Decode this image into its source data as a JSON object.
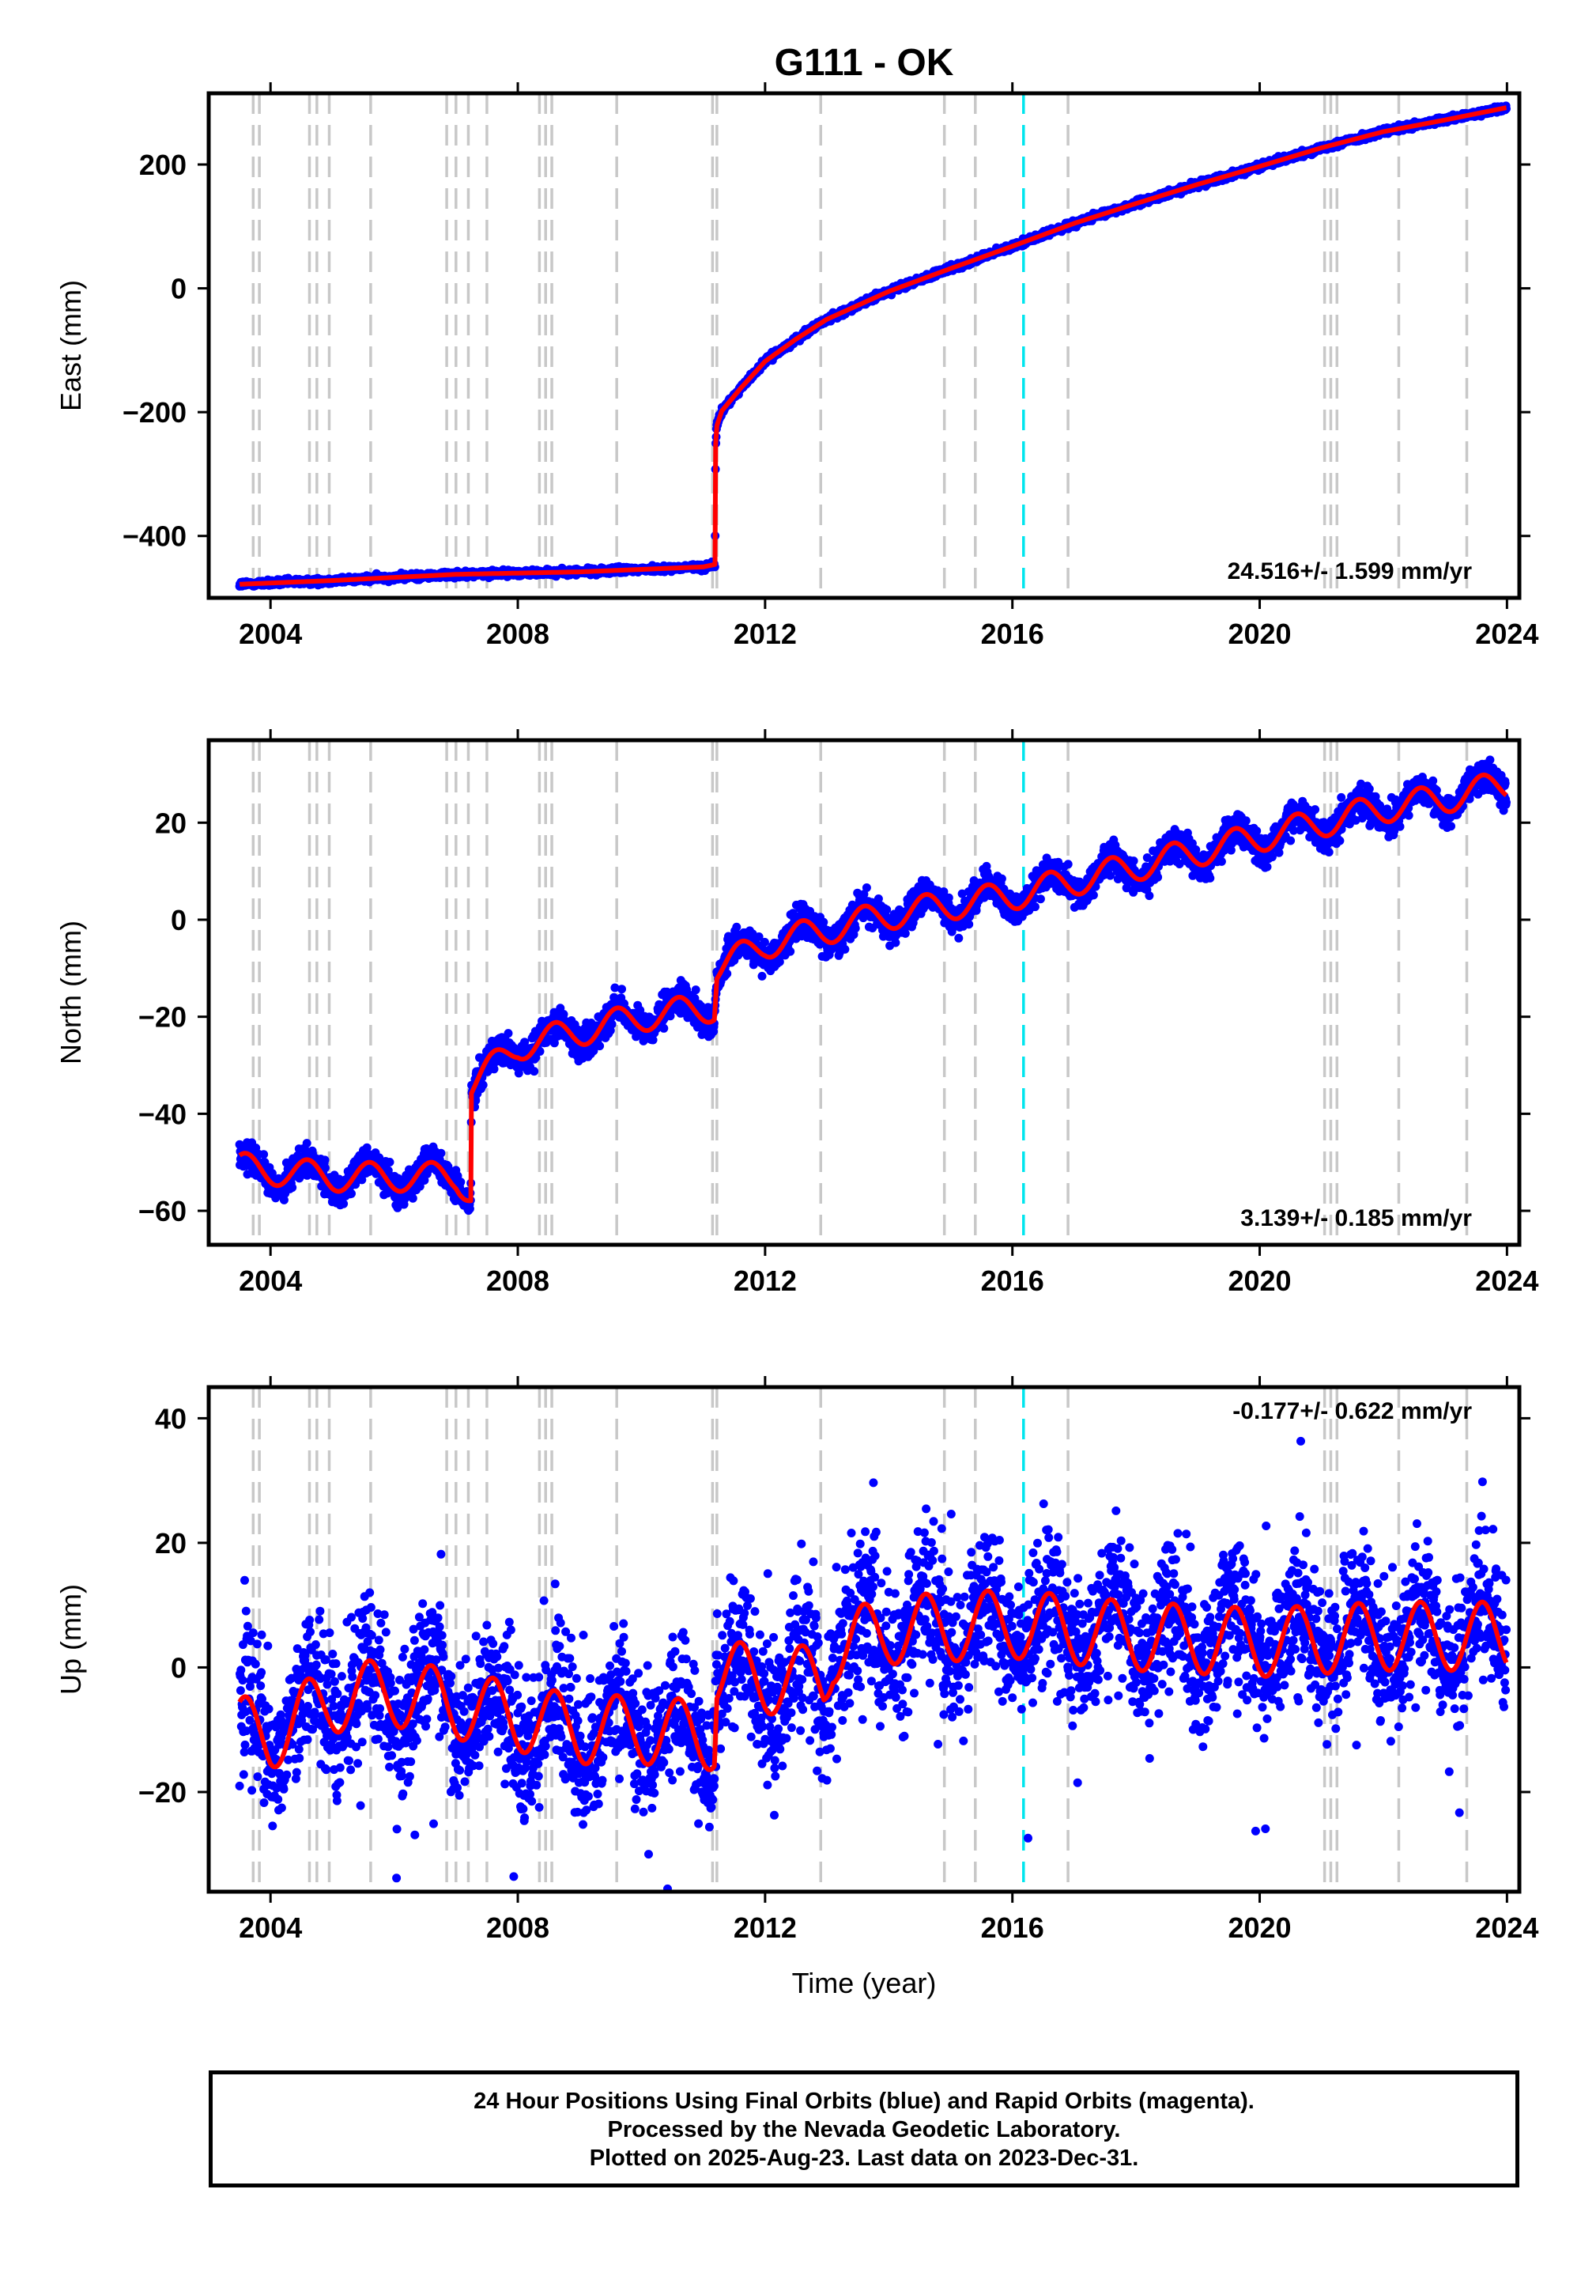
{
  "title": "G111 - OK",
  "xlabel": "Time (year)",
  "x_ticks": [
    2004,
    2008,
    2012,
    2016,
    2020,
    2024
  ],
  "colors": {
    "final_points": "#0000ff",
    "model_line": "#ff0000",
    "equipment_lines": "#c8c8c8",
    "highlight_line": "#00e5ee"
  },
  "footer": {
    "line1": "24 Hour Positions Using Final Orbits (blue) and Rapid Orbits (magenta).",
    "line2": "Processed by the Nevada Geodetic Laboratory.",
    "line3": "Plotted on 2025-Aug-23. Last data on 2023-Dec-31."
  },
  "chart_data": [
    {
      "type": "scatter",
      "name": "east",
      "ylabel": "East (mm)",
      "rate_label": "24.516+/- 1.599 mm/yr",
      "xlim": [
        2003.0,
        2024.2
      ],
      "ylim": [
        -500,
        315
      ],
      "y_ticks": [
        -400,
        -200,
        0,
        200
      ],
      "vertical_dashed_lines": [
        2003.72,
        2003.82,
        2004.63,
        2004.75,
        2004.95,
        2005.62,
        2006.85,
        2007.0,
        2007.2,
        2007.5,
        2008.35,
        2008.45,
        2008.55,
        2009.6,
        2011.15,
        2011.22,
        2012.9,
        2014.9,
        2015.4,
        2016.9,
        2021.05,
        2021.15,
        2021.25,
        2022.25,
        2023.35
      ],
      "highlight_line": 2016.18,
      "model_knots": [
        [
          2003.5,
          -478
        ],
        [
          2005.0,
          -472
        ],
        [
          2007.0,
          -462
        ],
        [
          2009.0,
          -458
        ],
        [
          2011.0,
          -450
        ],
        [
          2011.19,
          -446
        ],
        [
          2011.2,
          -252
        ],
        [
          2011.22,
          -222
        ],
        [
          2011.3,
          -198
        ],
        [
          2011.6,
          -162
        ],
        [
          2012.0,
          -118
        ],
        [
          2012.5,
          -82
        ],
        [
          2013.0,
          -50
        ],
        [
          2014.0,
          -5
        ],
        [
          2015.0,
          32
        ],
        [
          2016.0,
          68
        ],
        [
          2017.0,
          105
        ],
        [
          2018.0,
          137
        ],
        [
          2019.0,
          168
        ],
        [
          2020.0,
          197
        ],
        [
          2021.0,
          227
        ],
        [
          2022.0,
          253
        ],
        [
          2023.0,
          272
        ],
        [
          2024.0,
          292
        ]
      ],
      "annual_amplitude": 0.0,
      "scatter_sd": 2.5
    },
    {
      "type": "scatter",
      "name": "north",
      "ylabel": "North (mm)",
      "rate_label": "3.139+/- 0.185 mm/yr",
      "xlim": [
        2003.0,
        2024.2
      ],
      "ylim": [
        -67,
        37
      ],
      "y_ticks": [
        -60,
        -40,
        -20,
        0,
        20
      ],
      "vertical_dashed_lines": [
        2003.72,
        2003.82,
        2004.63,
        2004.75,
        2004.95,
        2005.62,
        2006.85,
        2007.0,
        2007.2,
        2007.5,
        2008.35,
        2008.45,
        2008.55,
        2009.6,
        2011.15,
        2011.22,
        2012.9,
        2014.9,
        2015.4,
        2016.9,
        2021.05,
        2021.15,
        2021.25,
        2022.25,
        2023.35
      ],
      "highlight_line": 2016.18,
      "model_knots": [
        [
          2003.5,
          -51
        ],
        [
          2005.0,
          -53
        ],
        [
          2007.0,
          -53
        ],
        [
          2007.24,
          -56
        ],
        [
          2007.25,
          -34
        ],
        [
          2008.0,
          -26
        ],
        [
          2009.0,
          -23
        ],
        [
          2010.0,
          -20
        ],
        [
          2011.18,
          -18
        ],
        [
          2011.22,
          -10
        ],
        [
          2012.0,
          -5
        ],
        [
          2013.0,
          -2
        ],
        [
          2014.0,
          1
        ],
        [
          2015.0,
          3
        ],
        [
          2016.0,
          5
        ],
        [
          2017.0,
          8
        ],
        [
          2018.0,
          11
        ],
        [
          2019.0,
          14
        ],
        [
          2020.0,
          17
        ],
        [
          2021.0,
          20
        ],
        [
          2022.0,
          23
        ],
        [
          2023.0,
          25
        ],
        [
          2024.0,
          28
        ]
      ],
      "annual_amplitude": 3.0,
      "scatter_sd": 1.6
    },
    {
      "type": "scatter",
      "name": "up",
      "ylabel": "Up (mm)",
      "rate_label": "-0.177+/- 0.622 mm/yr",
      "xlim": [
        2003.0,
        2024.2
      ],
      "ylim": [
        -36,
        45
      ],
      "y_ticks": [
        -20,
        0,
        20,
        40
      ],
      "vertical_dashed_lines": [
        2003.72,
        2003.82,
        2004.63,
        2004.75,
        2004.95,
        2005.62,
        2006.85,
        2007.0,
        2007.2,
        2007.5,
        2008.35,
        2008.45,
        2008.55,
        2009.6,
        2011.15,
        2011.22,
        2012.9,
        2014.9,
        2015.4,
        2016.9,
        2021.05,
        2021.15,
        2021.25,
        2022.25,
        2023.35
      ],
      "highlight_line": 2016.18,
      "model_knots": [
        [
          2003.5,
          -10
        ],
        [
          2004.0,
          -11
        ],
        [
          2005.0,
          -5
        ],
        [
          2006.0,
          -4
        ],
        [
          2007.0,
          -6
        ],
        [
          2008.0,
          -8
        ],
        [
          2009.0,
          -10
        ],
        [
          2010.0,
          -10
        ],
        [
          2011.18,
          -11
        ],
        [
          2011.22,
          -1
        ],
        [
          2012.0,
          -2
        ],
        [
          2012.95,
          -2
        ],
        [
          2013.1,
          3
        ],
        [
          2014.0,
          6
        ],
        [
          2016.0,
          7
        ],
        [
          2018.0,
          5
        ],
        [
          2020.0,
          4
        ],
        [
          2022.0,
          5
        ],
        [
          2024.0,
          5
        ]
      ],
      "annual_amplitude": 5.5,
      "scatter_sd": 5.5
    }
  ]
}
